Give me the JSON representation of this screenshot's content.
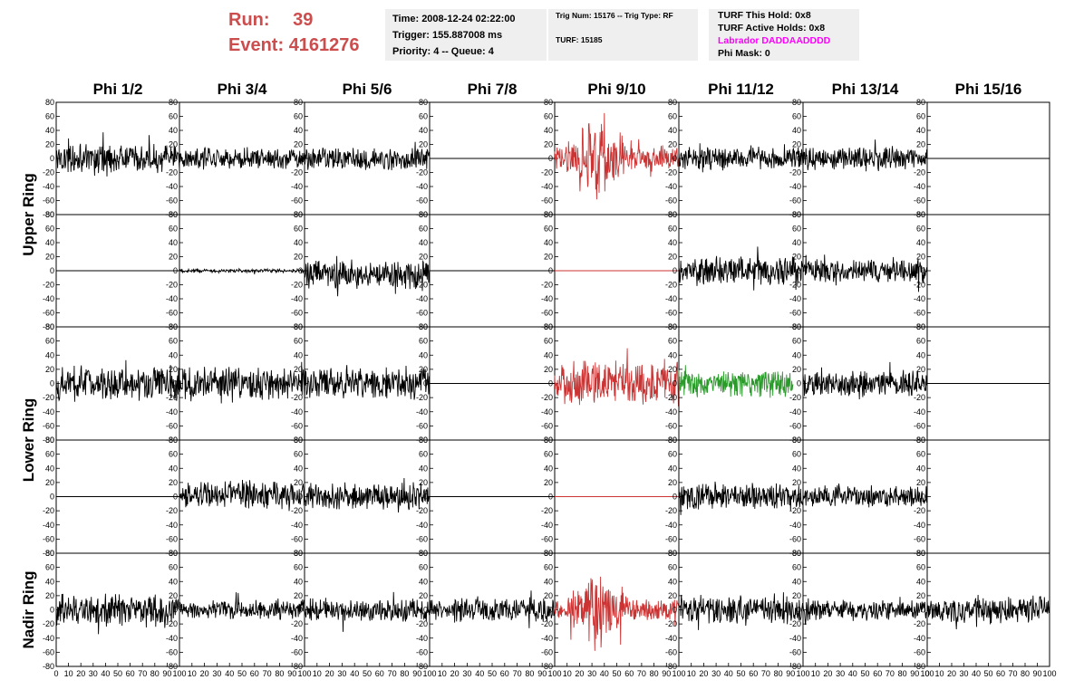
{
  "header": {
    "run_label": "Run:",
    "run_value": "39",
    "event_label": "Event:",
    "event_value": "4161276",
    "time": "Time: 2008-12-24 02:22:00",
    "trigger": "Trigger: 155.887008 ms",
    "priority": "Priority: 4 -- Queue: 4",
    "trig_num": "Trig Num: 15176 -- Trig Type: RF",
    "turf": "TURF: 15185",
    "turf_hold": "TURF This Hold: 0x8",
    "turf_active": "TURF Active Holds: 0x8",
    "labrador": "Labrador DADDAADDDD",
    "phi_mask": "Phi Mask: 0"
  },
  "colors": {
    "header_red": "#cc4d4d",
    "trace_black": "#000000",
    "trace_red": "#cc3333",
    "trace_green": "#2a9a2a",
    "labrador_magenta": "#ff00ff",
    "info_bg": "#efefef"
  },
  "chart_data": {
    "type": "line",
    "columns": [
      "Phi 1/2",
      "Phi 3/4",
      "Phi 5/6",
      "Phi 7/8",
      "Phi 9/10",
      "Phi 11/12",
      "Phi 13/14",
      "Phi 15/16"
    ],
    "rows": [
      "Upper Ring",
      "Upper Ring",
      "Lower Ring",
      "Lower Ring",
      "Nadir Ring"
    ],
    "row_label_groups": [
      {
        "label": "Upper Ring",
        "rows": [
          0,
          1
        ]
      },
      {
        "label": "Lower Ring",
        "rows": [
          2,
          3
        ]
      },
      {
        "label": "Nadir Ring",
        "rows": [
          4
        ]
      }
    ],
    "xlim": [
      0,
      100
    ],
    "ylim": [
      -80,
      80
    ],
    "y_ticks": [
      -80,
      -60,
      -40,
      -20,
      0,
      20,
      40,
      60,
      80
    ],
    "x_ticks": [
      0,
      10,
      20,
      30,
      40,
      50,
      60,
      70,
      80,
      90,
      100
    ],
    "x_ticks_first_panel": [
      "0",
      "10",
      "20",
      "30",
      "40",
      "50",
      "60",
      "70",
      "80",
      "90",
      "100"
    ],
    "x_ticks_middle_panels": [
      "10",
      "20",
      "30",
      "40",
      "50",
      "60",
      "70",
      "80",
      "90",
      "100"
    ],
    "x_ticks_last_panel": [
      "0",
      "10",
      "20",
      "30",
      "40",
      "50",
      "60",
      "70",
      "80",
      "90",
      "100"
    ],
    "panels": [
      {
        "row": 0,
        "col": 0,
        "color": "black",
        "amplitude": 15,
        "flat": false
      },
      {
        "row": 0,
        "col": 1,
        "color": "black",
        "amplitude": 11,
        "flat": false
      },
      {
        "row": 0,
        "col": 2,
        "color": "black",
        "amplitude": 12,
        "flat": false
      },
      {
        "row": 0,
        "col": 3,
        "color": "black",
        "amplitude": 0,
        "flat": true
      },
      {
        "row": 0,
        "col": 4,
        "color": "red",
        "amplitude": 30,
        "flat": false,
        "burst": true
      },
      {
        "row": 0,
        "col": 5,
        "color": "black",
        "amplitude": 12,
        "flat": false
      },
      {
        "row": 0,
        "col": 6,
        "color": "black",
        "amplitude": 13,
        "flat": false
      },
      {
        "row": 0,
        "col": 7,
        "color": "black",
        "amplitude": 0,
        "flat": true
      },
      {
        "row": 1,
        "col": 0,
        "color": "black",
        "amplitude": 0,
        "flat": true
      },
      {
        "row": 1,
        "col": 1,
        "color": "black",
        "amplitude": 2,
        "flat": false
      },
      {
        "row": 1,
        "col": 2,
        "color": "black",
        "amplitude": 15,
        "flat": false,
        "offset": -5
      },
      {
        "row": 1,
        "col": 3,
        "color": "black",
        "amplitude": 0,
        "flat": true
      },
      {
        "row": 1,
        "col": 4,
        "color": "red",
        "amplitude": 0,
        "flat": true
      },
      {
        "row": 1,
        "col": 5,
        "color": "black",
        "amplitude": 15,
        "flat": false
      },
      {
        "row": 1,
        "col": 6,
        "color": "black",
        "amplitude": 12,
        "flat": false
      },
      {
        "row": 1,
        "col": 7,
        "color": "black",
        "amplitude": 0,
        "flat": true,
        "blank": true
      },
      {
        "row": 2,
        "col": 0,
        "color": "black",
        "amplitude": 18,
        "flat": false
      },
      {
        "row": 2,
        "col": 1,
        "color": "black",
        "amplitude": 17,
        "flat": false
      },
      {
        "row": 2,
        "col": 2,
        "color": "black",
        "amplitude": 17,
        "flat": false
      },
      {
        "row": 2,
        "col": 3,
        "color": "black",
        "amplitude": 0,
        "flat": true
      },
      {
        "row": 2,
        "col": 4,
        "color": "red",
        "amplitude": 25,
        "flat": false
      },
      {
        "row": 2,
        "col": 5,
        "color": "green",
        "amplitude": 15,
        "flat": false,
        "range": [
          0,
          92
        ]
      },
      {
        "row": 2,
        "col": 6,
        "color": "black",
        "amplitude": 14,
        "flat": false
      },
      {
        "row": 2,
        "col": 7,
        "color": "black",
        "amplitude": 0,
        "flat": true
      },
      {
        "row": 3,
        "col": 0,
        "color": "black",
        "amplitude": 0,
        "flat": true
      },
      {
        "row": 3,
        "col": 1,
        "color": "black",
        "amplitude": 15,
        "flat": false,
        "offset": 3
      },
      {
        "row": 3,
        "col": 2,
        "color": "black",
        "amplitude": 14,
        "flat": false
      },
      {
        "row": 3,
        "col": 3,
        "color": "black",
        "amplitude": 0,
        "flat": true
      },
      {
        "row": 3,
        "col": 4,
        "color": "red",
        "amplitude": 0,
        "flat": true
      },
      {
        "row": 3,
        "col": 5,
        "color": "black",
        "amplitude": 14,
        "flat": false
      },
      {
        "row": 3,
        "col": 6,
        "color": "black",
        "amplitude": 11,
        "flat": false
      },
      {
        "row": 3,
        "col": 7,
        "color": "black",
        "amplitude": 0,
        "flat": true,
        "blank": true
      },
      {
        "row": 4,
        "col": 0,
        "color": "black",
        "amplitude": 18,
        "flat": false
      },
      {
        "row": 4,
        "col": 1,
        "color": "black",
        "amplitude": 10,
        "flat": false
      },
      {
        "row": 4,
        "col": 2,
        "color": "black",
        "amplitude": 12,
        "flat": false
      },
      {
        "row": 4,
        "col": 3,
        "color": "black",
        "amplitude": 13,
        "flat": false
      },
      {
        "row": 4,
        "col": 4,
        "color": "red",
        "amplitude": 24,
        "flat": false,
        "burst": true
      },
      {
        "row": 4,
        "col": 5,
        "color": "black",
        "amplitude": 16,
        "flat": false
      },
      {
        "row": 4,
        "col": 6,
        "color": "black",
        "amplitude": 11,
        "flat": false
      },
      {
        "row": 4,
        "col": 7,
        "color": "black",
        "amplitude": 14,
        "flat": false
      }
    ]
  }
}
